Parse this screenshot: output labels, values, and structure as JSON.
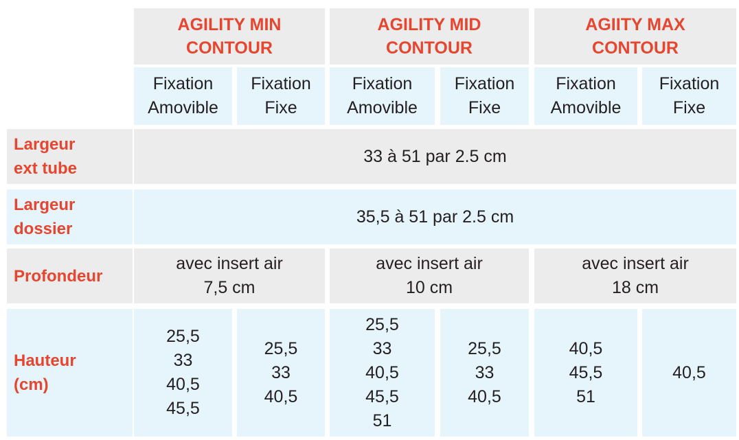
{
  "table": {
    "groups": [
      "AGILITY MIN\nCONTOUR",
      "AGILITY MID\nCONTOUR",
      "AGIITY MAX\nCONTOUR"
    ],
    "subheaders": [
      "Fixation\nAmovible",
      "Fixation\nFixe",
      "Fixation\nAmovible",
      "Fixation\nFixe",
      "Fixation\nAmovible",
      "Fixation\nFixe"
    ],
    "rows": [
      {
        "label": "Largeur\next tube",
        "value": "33 à 51 par 2.5 cm"
      },
      {
        "label": "Largeur\ndossier",
        "value": "35,5 à 51 par 2.5 cm"
      },
      {
        "label": "Profondeur",
        "values": [
          "avec insert air\n7,5 cm",
          "avec insert air\n10 cm",
          "avec insert air\n18 cm"
        ]
      },
      {
        "label": "Hauteur\n(cm)",
        "values": [
          [
            "25,5",
            "33",
            "40,5",
            "45,5"
          ],
          [
            "25,5",
            "33",
            "40,5"
          ],
          [
            "25,5",
            "33",
            "40,5",
            "45,5",
            "51"
          ],
          [
            "25,5",
            "33",
            "40,5"
          ],
          [
            "40,5",
            "45,5",
            "51"
          ],
          [
            "40,5"
          ]
        ]
      }
    ]
  }
}
